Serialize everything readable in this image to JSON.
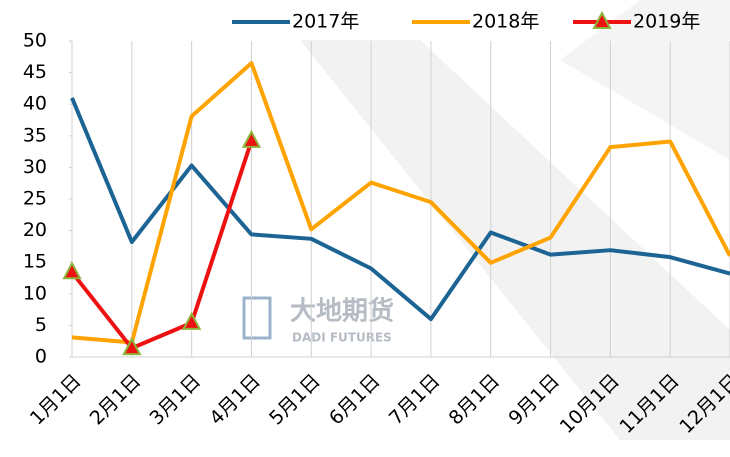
{
  "chart_data": {
    "type": "line",
    "categories": [
      "1月1日",
      "2月1日",
      "3月1日",
      "4月1日",
      "5月1日",
      "6月1日",
      "7月1日",
      "8月1日",
      "9月1日",
      "10月1日",
      "11月1日",
      "12月1日"
    ],
    "series": [
      {
        "name": "2017年",
        "color": "#1b6494",
        "values": [
          41,
          18.2,
          30.3,
          19.4,
          18.7,
          14,
          6,
          19.7,
          16.2,
          16.9,
          15.8,
          13.2
        ]
      },
      {
        "name": "2018年",
        "color": "#ffa300",
        "values": [
          3.1,
          2.3,
          38.1,
          46.5,
          20.2,
          27.6,
          24.5,
          14.9,
          18.9,
          33.2,
          34.1,
          16
        ]
      },
      {
        "name": "2019年",
        "color": "#ee1111",
        "marker": "triangle",
        "values": [
          13.4,
          1.4,
          5.4,
          34.2,
          null,
          null,
          null,
          null,
          null,
          null,
          null,
          null
        ]
      }
    ],
    "ylim": [
      0,
      50
    ],
    "yticks": [
      0,
      5,
      10,
      15,
      20,
      25,
      30,
      35,
      40,
      45,
      50
    ],
    "grid": "x",
    "legend": "top",
    "watermark": [
      "大地期货",
      "DADI FUTURES"
    ]
  }
}
